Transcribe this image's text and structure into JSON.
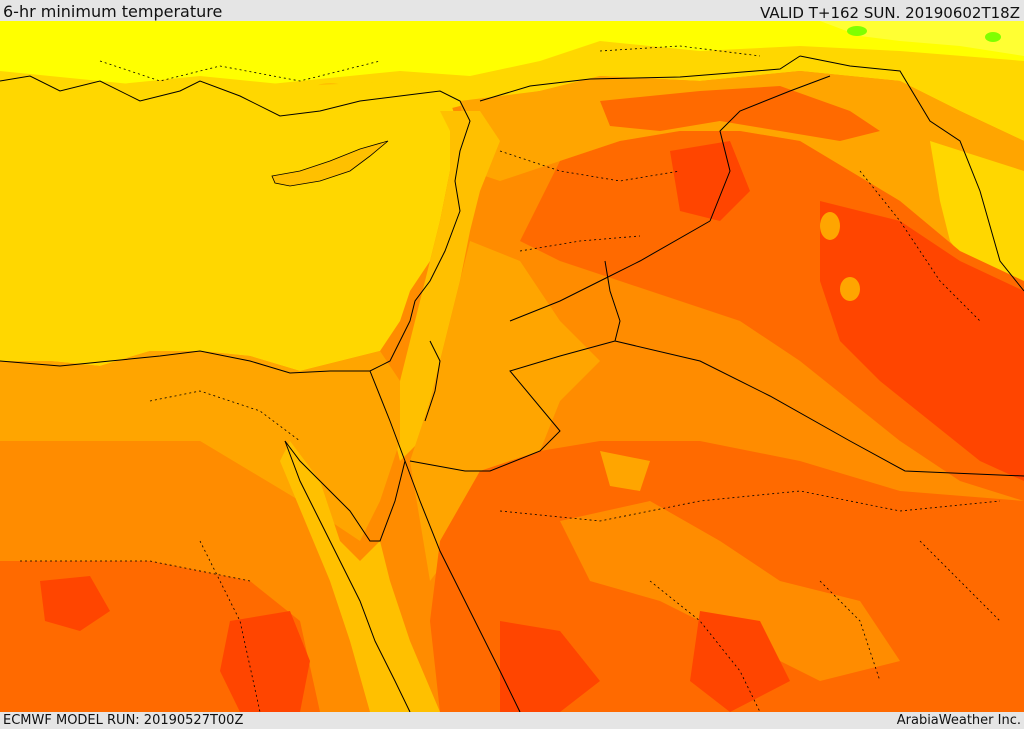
{
  "header": {
    "title": "6-hr minimum temperature",
    "valid": "VALID T+162 SUN. 20190602T18Z"
  },
  "footer": {
    "model_run": "ECMWF MODEL RUN: 20190527T00Z",
    "credit": "ArabiaWeather Inc."
  },
  "colors": {
    "cool_yellow": "#ffff00",
    "pale_yellow": "#ffff33",
    "gold": "#ffd700",
    "amber": "#ffc000",
    "orange_light": "#ffa500",
    "orange": "#ff8c00",
    "orange_dark": "#ff6a00",
    "red_orange": "#ff4500",
    "green": "#7fff00",
    "border": "#000000"
  }
}
